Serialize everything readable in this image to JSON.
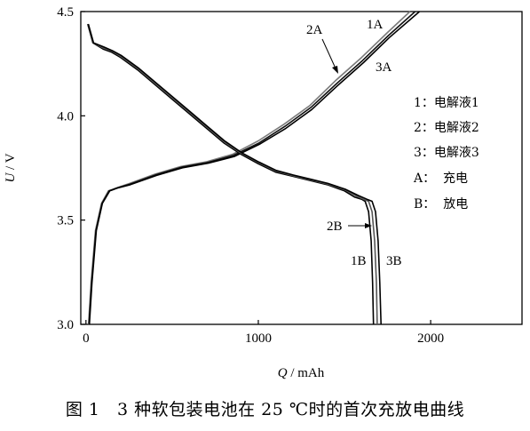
{
  "caption": "图 1　3 种软包装电池在 25 ℃时的首次充放电曲线",
  "chart_data": {
    "type": "line",
    "xlabel_var": "Q",
    "xlabel_unit": "mAh",
    "ylabel_var": "U",
    "ylabel_unit": "V",
    "xlim": [
      -30,
      2530
    ],
    "ylim": [
      3.0,
      4.5
    ],
    "xticks": [
      0,
      1000,
      2000
    ],
    "yticks": [
      3.0,
      3.5,
      4.0,
      4.5
    ],
    "x_tick_labels": [
      "0",
      "1000",
      "2000"
    ],
    "y_tick_labels": [
      "3.0",
      "3.5",
      "4.0",
      "4.5"
    ],
    "grid": false,
    "legend_position": "right",
    "legend": [
      {
        "label": "1：电解液1"
      },
      {
        "label": "2：电解液2"
      },
      {
        "label": "3：电解液3"
      },
      {
        "label": "A：  充电"
      },
      {
        "label": "B：  放电"
      }
    ],
    "annotations": [
      "1A",
      "2A",
      "3A",
      "1B",
      "2B",
      "3B"
    ],
    "series": [
      {
        "id": "1A",
        "color": "#7a7a7a",
        "points": [
          [
            15,
            3.0
          ],
          [
            30,
            3.2
          ],
          [
            55,
            3.45
          ],
          [
            90,
            3.58
          ],
          [
            130,
            3.64
          ],
          [
            180,
            3.655
          ],
          [
            250,
            3.675
          ],
          [
            400,
            3.72
          ],
          [
            550,
            3.757
          ],
          [
            700,
            3.78
          ],
          [
            850,
            3.815
          ],
          [
            1000,
            3.88
          ],
          [
            1150,
            3.96
          ],
          [
            1300,
            4.05
          ],
          [
            1450,
            4.17
          ],
          [
            1600,
            4.28
          ],
          [
            1750,
            4.4
          ],
          [
            1880,
            4.5
          ]
        ]
      },
      {
        "id": "2A",
        "color": "#111111",
        "points": [
          [
            18,
            3.0
          ],
          [
            33,
            3.2
          ],
          [
            58,
            3.45
          ],
          [
            93,
            3.58
          ],
          [
            135,
            3.64
          ],
          [
            185,
            3.655
          ],
          [
            255,
            3.672
          ],
          [
            405,
            3.717
          ],
          [
            555,
            3.754
          ],
          [
            705,
            3.776
          ],
          [
            855,
            3.81
          ],
          [
            1005,
            3.87
          ],
          [
            1155,
            3.95
          ],
          [
            1305,
            4.04
          ],
          [
            1455,
            4.155
          ],
          [
            1605,
            4.265
          ],
          [
            1755,
            4.385
          ],
          [
            1910,
            4.5
          ]
        ]
      },
      {
        "id": "3A",
        "color": "#000000",
        "points": [
          [
            20,
            3.0
          ],
          [
            35,
            3.2
          ],
          [
            60,
            3.45
          ],
          [
            95,
            3.58
          ],
          [
            138,
            3.64
          ],
          [
            188,
            3.655
          ],
          [
            258,
            3.67
          ],
          [
            410,
            3.714
          ],
          [
            560,
            3.751
          ],
          [
            710,
            3.773
          ],
          [
            860,
            3.805
          ],
          [
            1010,
            3.865
          ],
          [
            1160,
            3.94
          ],
          [
            1310,
            4.03
          ],
          [
            1460,
            4.145
          ],
          [
            1610,
            4.255
          ],
          [
            1760,
            4.375
          ],
          [
            1935,
            4.5
          ]
        ]
      },
      {
        "id": "1B",
        "color": "#000000",
        "points": [
          [
            10,
            4.44
          ],
          [
            40,
            4.35
          ],
          [
            100,
            4.32
          ],
          [
            150,
            4.305
          ],
          [
            200,
            4.28
          ],
          [
            300,
            4.22
          ],
          [
            400,
            4.15
          ],
          [
            500,
            4.08
          ],
          [
            600,
            4.01
          ],
          [
            700,
            3.94
          ],
          [
            800,
            3.87
          ],
          [
            900,
            3.815
          ],
          [
            1000,
            3.77
          ],
          [
            1100,
            3.73
          ],
          [
            1200,
            3.71
          ],
          [
            1300,
            3.69
          ],
          [
            1400,
            3.67
          ],
          [
            1500,
            3.64
          ],
          [
            1560,
            3.61
          ],
          [
            1600,
            3.6
          ],
          [
            1620,
            3.59
          ],
          [
            1640,
            3.54
          ],
          [
            1655,
            3.4
          ],
          [
            1663,
            3.2
          ],
          [
            1668,
            3.0
          ]
        ]
      },
      {
        "id": "2B",
        "color": "#555555",
        "points": [
          [
            12,
            4.44
          ],
          [
            42,
            4.35
          ],
          [
            102,
            4.325
          ],
          [
            152,
            4.31
          ],
          [
            202,
            4.285
          ],
          [
            302,
            4.225
          ],
          [
            402,
            4.155
          ],
          [
            502,
            4.085
          ],
          [
            602,
            4.015
          ],
          [
            702,
            3.945
          ],
          [
            802,
            3.875
          ],
          [
            902,
            3.82
          ],
          [
            1002,
            3.775
          ],
          [
            1102,
            3.735
          ],
          [
            1202,
            3.713
          ],
          [
            1302,
            3.693
          ],
          [
            1402,
            3.673
          ],
          [
            1502,
            3.645
          ],
          [
            1570,
            3.615
          ],
          [
            1610,
            3.6
          ],
          [
            1640,
            3.59
          ],
          [
            1660,
            3.54
          ],
          [
            1675,
            3.4
          ],
          [
            1685,
            3.2
          ],
          [
            1690,
            3.0
          ]
        ]
      },
      {
        "id": "3B",
        "color": "#000000",
        "points": [
          [
            14,
            4.44
          ],
          [
            44,
            4.35
          ],
          [
            104,
            4.33
          ],
          [
            154,
            4.312
          ],
          [
            204,
            4.29
          ],
          [
            304,
            4.23
          ],
          [
            404,
            4.16
          ],
          [
            504,
            4.09
          ],
          [
            604,
            4.02
          ],
          [
            704,
            3.95
          ],
          [
            804,
            3.88
          ],
          [
            904,
            3.823
          ],
          [
            1004,
            3.778
          ],
          [
            1104,
            3.738
          ],
          [
            1204,
            3.716
          ],
          [
            1304,
            3.696
          ],
          [
            1404,
            3.676
          ],
          [
            1504,
            3.648
          ],
          [
            1580,
            3.618
          ],
          [
            1630,
            3.6
          ],
          [
            1660,
            3.59
          ],
          [
            1680,
            3.54
          ],
          [
            1695,
            3.4
          ],
          [
            1705,
            3.2
          ],
          [
            1712,
            3.0
          ]
        ]
      }
    ]
  }
}
